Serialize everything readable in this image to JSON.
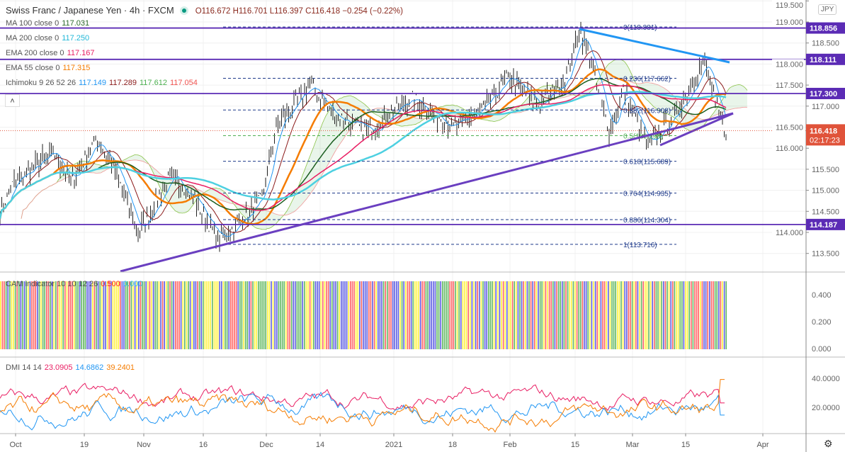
{
  "header": {
    "symbol": "Swiss Franc / Japanese Yen · 4h · FXCM",
    "ohlc": "O116.672  H116.701  L116.397  C116.418  −0.254 (−0.22%)"
  },
  "legends": [
    {
      "label": "MA 100 close 0",
      "values": [
        {
          "v": "117.031",
          "c": "#2e6b2e"
        }
      ]
    },
    {
      "label": "MA 200 close 0",
      "values": [
        {
          "v": "117.250",
          "c": "#22b8d8"
        }
      ]
    },
    {
      "label": "EMA 200 close 0",
      "values": [
        {
          "v": "117.167",
          "c": "#e91e63"
        }
      ]
    },
    {
      "label": "EMA 55 close 0",
      "values": [
        {
          "v": "117.315",
          "c": "#f57c00"
        }
      ]
    },
    {
      "label": "Ichimoku 9 26 52 26",
      "values": [
        {
          "v": "117.149",
          "c": "#2196f3"
        },
        {
          "v": "117.289",
          "c": "#8b1a1a"
        },
        {
          "v": "117.612",
          "c": "#4caf50"
        },
        {
          "v": "117.054",
          "c": "#ef5350"
        }
      ]
    }
  ],
  "cam": {
    "label": "CAM indicator 10 10 12 26",
    "v1": "0.500",
    "v2": "0.000",
    "ticks": [
      "0.400",
      "0.200",
      "0.000"
    ],
    "colors": [
      "#2a2ad8",
      "#ffee00",
      "#ff3030",
      "#2ca02c"
    ]
  },
  "dmi": {
    "label": "DMI 14 14",
    "v1": "23.0905",
    "v2": "14.6862",
    "v3": "39.2401",
    "ticks": [
      "40.0000",
      "20.0000"
    ]
  },
  "price_axis": {
    "currency": "JPY",
    "ticks": [
      "119.500",
      "119.000",
      "118.500",
      "118.000",
      "117.500",
      "117.000",
      "116.500",
      "116.000",
      "115.500",
      "115.000",
      "114.500",
      "114.000",
      "113.500"
    ],
    "levels": [
      {
        "price": 118.856,
        "label": "118.856"
      },
      {
        "price": 118.111,
        "label": "118.111"
      },
      {
        "price": 117.3,
        "label": "117.300"
      },
      {
        "price": 114.187,
        "label": "114.187"
      }
    ],
    "last": {
      "price": 116.418,
      "label": "116.418",
      "countdown": "02:17:23"
    }
  },
  "fib": [
    {
      "price": 118.881,
      "label": "0(118.881)",
      "c": "#1e3a8a"
    },
    {
      "price": 117.662,
      "label": "0.236(117.662)",
      "c": "#1e3a8a"
    },
    {
      "price": 116.908,
      "label": "0.382(116.908)",
      "c": "#1e3a8a"
    },
    {
      "price": 116.298,
      "label": "0.5(116.298)",
      "c": "#4caf50"
    },
    {
      "price": 115.689,
      "label": "0.618(115.689)",
      "c": "#1e3a8a"
    },
    {
      "price": 114.935,
      "label": "0.764(114.935)",
      "c": "#1e3a8a"
    },
    {
      "price": 114.304,
      "label": "0.886(114.304)",
      "c": "#1e3a8a"
    },
    {
      "price": 113.716,
      "label": "1(113.716)",
      "c": "#1e3a8a"
    }
  ],
  "time_axis": [
    "Oct",
    "19",
    "Nov",
    "16",
    "Dec",
    "14",
    "2021",
    "18",
    "Feb",
    "15",
    "Mar",
    "15",
    "Apr"
  ],
  "colors": {
    "level": "#5b2bb5",
    "trend_blue": "#2196f3",
    "last": "#e0533a"
  }
}
